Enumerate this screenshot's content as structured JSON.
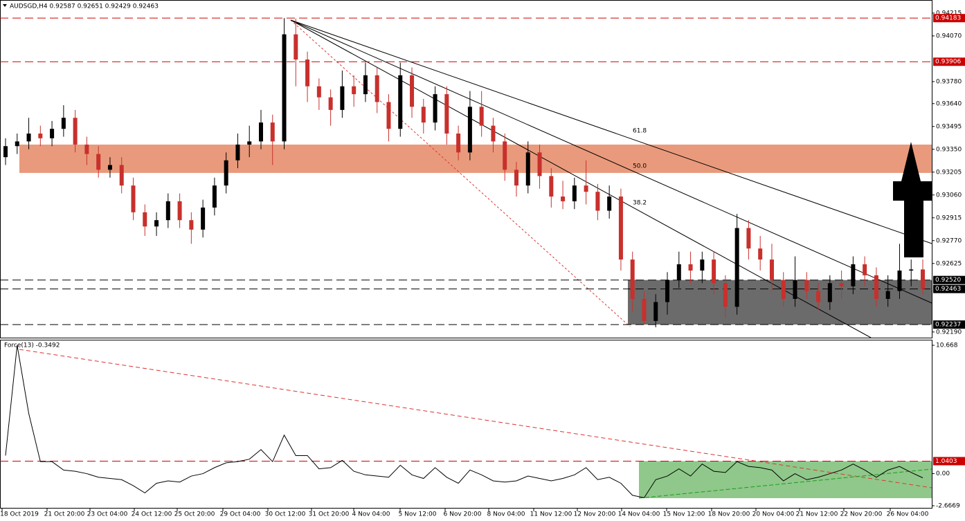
{
  "chart_data": {
    "type": "candlestick",
    "header": "AUDSGD,H4  0.92587 0.92651 0.92429 0.92463",
    "ylim": [
      0.92154,
      0.94298
    ],
    "yticks": [
      {
        "value": 0.94215,
        "label": "0.94215"
      },
      {
        "value": 0.9407,
        "label": "0.94070"
      },
      {
        "value": 0.9378,
        "label": "0.93780"
      },
      {
        "value": 0.9364,
        "label": "0.93640"
      },
      {
        "value": 0.93495,
        "label": "0.93495"
      },
      {
        "value": 0.9335,
        "label": "0.93350"
      },
      {
        "value": 0.93205,
        "label": "0.93205"
      },
      {
        "value": 0.9306,
        "label": "0.93060"
      },
      {
        "value": 0.92915,
        "label": "0.92915"
      },
      {
        "value": 0.9277,
        "label": "0.92770"
      },
      {
        "value": 0.92625,
        "label": "0.92625"
      },
      {
        "value": 0.9219,
        "label": "0.92190"
      }
    ],
    "x_labels": [
      "18 Oct 2019",
      "21 Oct 20:00",
      "23 Oct 04:00",
      "24 Oct 12:00",
      "25 Oct 20:00",
      "29 Oct 04:00",
      "30 Oct 12:00",
      "31 Oct 20:00",
      "4 Nov 04:00",
      "5 Nov 12:00",
      "6 Nov 20:00",
      "8 Nov 04:00",
      "11 Nov 12:00",
      "12 Nov 20:00",
      "14 Nov 04:00",
      "15 Nov 12:00",
      "18 Nov 20:00",
      "20 Nov 04:00",
      "21 Nov 12:00",
      "22 Nov 20:00",
      "26 Nov 04:00"
    ],
    "levels": [
      {
        "value": 0.94183,
        "label": "0.94183",
        "color": "#cc0000"
      },
      {
        "value": 0.93906,
        "label": "0.93906",
        "color": "#cc0000"
      },
      {
        "value": 0.9252,
        "label": "0.92520",
        "color": "#000000"
      },
      {
        "value": 0.92463,
        "label": "0.92463",
        "color": "#000000"
      },
      {
        "value": 0.92237,
        "label": "0.92237",
        "color": "#000000"
      }
    ],
    "resistance_zone": [
      0.932,
      0.9338
    ],
    "support_zone": [
      0.92237,
      0.9252
    ],
    "fib_labels": [
      "61.8",
      "50.0",
      "38.2"
    ],
    "up_color": "#000000",
    "down_color": "#c8302c",
    "ohlc": [
      [
        0.933,
        0.9342,
        0.9325,
        0.9337
      ],
      [
        0.9337,
        0.9345,
        0.9332,
        0.934
      ],
      [
        0.934,
        0.9355,
        0.9335,
        0.9345
      ],
      [
        0.9345,
        0.935,
        0.9337,
        0.9342
      ],
      [
        0.9342,
        0.9353,
        0.9337,
        0.9348
      ],
      [
        0.9348,
        0.9363,
        0.9343,
        0.9355
      ],
      [
        0.9355,
        0.936,
        0.9333,
        0.9338
      ],
      [
        0.9338,
        0.9343,
        0.9325,
        0.9332
      ],
      [
        0.9332,
        0.9337,
        0.9317,
        0.9322
      ],
      [
        0.9322,
        0.933,
        0.9317,
        0.9325
      ],
      [
        0.9325,
        0.933,
        0.9307,
        0.9312
      ],
      [
        0.9312,
        0.9317,
        0.929,
        0.9295
      ],
      [
        0.9295,
        0.93,
        0.928,
        0.9286
      ],
      [
        0.9286,
        0.9295,
        0.928,
        0.929
      ],
      [
        0.929,
        0.9307,
        0.9285,
        0.9302
      ],
      [
        0.9302,
        0.9307,
        0.9285,
        0.929
      ],
      [
        0.929,
        0.9295,
        0.9275,
        0.9284
      ],
      [
        0.9284,
        0.9303,
        0.9279,
        0.9298
      ],
      [
        0.9298,
        0.9317,
        0.9293,
        0.9312
      ],
      [
        0.9312,
        0.9333,
        0.9307,
        0.9328
      ],
      [
        0.9328,
        0.9345,
        0.9323,
        0.9338
      ],
      [
        0.9338,
        0.935,
        0.933,
        0.934
      ],
      [
        0.934,
        0.936,
        0.9335,
        0.9352
      ],
      [
        0.9352,
        0.9357,
        0.9325,
        0.934
      ],
      [
        0.934,
        0.94183,
        0.9335,
        0.9408
      ],
      [
        0.9408,
        0.9418,
        0.9375,
        0.9392
      ],
      [
        0.9392,
        0.9397,
        0.9365,
        0.9375
      ],
      [
        0.9375,
        0.938,
        0.936,
        0.9368
      ],
      [
        0.9368,
        0.9373,
        0.935,
        0.936
      ],
      [
        0.936,
        0.9385,
        0.9355,
        0.9375
      ],
      [
        0.9375,
        0.9382,
        0.9362,
        0.937
      ],
      [
        0.937,
        0.939,
        0.9365,
        0.9382
      ],
      [
        0.9382,
        0.9387,
        0.9358,
        0.9365
      ],
      [
        0.9365,
        0.937,
        0.934,
        0.9348
      ],
      [
        0.9348,
        0.939,
        0.9343,
        0.9382
      ],
      [
        0.9382,
        0.9387,
        0.9355,
        0.9362
      ],
      [
        0.9362,
        0.9367,
        0.9345,
        0.9352
      ],
      [
        0.9352,
        0.9375,
        0.9347,
        0.937
      ],
      [
        0.937,
        0.9375,
        0.9338,
        0.9345
      ],
      [
        0.9345,
        0.935,
        0.9328,
        0.9333
      ],
      [
        0.9333,
        0.9372,
        0.9328,
        0.9362
      ],
      [
        0.9362,
        0.9372,
        0.9343,
        0.935
      ],
      [
        0.935,
        0.9355,
        0.9333,
        0.934
      ],
      [
        0.934,
        0.9345,
        0.9315,
        0.9322
      ],
      [
        0.9322,
        0.9327,
        0.9305,
        0.9312
      ],
      [
        0.9312,
        0.934,
        0.9307,
        0.9333
      ],
      [
        0.9333,
        0.9338,
        0.931,
        0.9318
      ],
      [
        0.9318,
        0.9323,
        0.9298,
        0.9305
      ],
      [
        0.9305,
        0.9315,
        0.9297,
        0.9302
      ],
      [
        0.9302,
        0.9317,
        0.9297,
        0.9312
      ],
      [
        0.9312,
        0.9328,
        0.93,
        0.9308
      ],
      [
        0.9308,
        0.9313,
        0.929,
        0.9296
      ],
      [
        0.9296,
        0.9312,
        0.9291,
        0.9305
      ],
      [
        0.9305,
        0.931,
        0.9258,
        0.9265
      ],
      [
        0.9265,
        0.927,
        0.9232,
        0.924
      ],
      [
        0.924,
        0.9245,
        0.92237,
        0.9226
      ],
      [
        0.9226,
        0.9243,
        0.9222,
        0.9238
      ],
      [
        0.9238,
        0.9257,
        0.923,
        0.9252
      ],
      [
        0.9252,
        0.927,
        0.9247,
        0.9262
      ],
      [
        0.9262,
        0.927,
        0.925,
        0.9258
      ],
      [
        0.9258,
        0.927,
        0.925,
        0.9265
      ],
      [
        0.9265,
        0.927,
        0.9243,
        0.925
      ],
      [
        0.925,
        0.9255,
        0.9228,
        0.9235
      ],
      [
        0.9235,
        0.9294,
        0.923,
        0.9285
      ],
      [
        0.9285,
        0.929,
        0.9265,
        0.9272
      ],
      [
        0.9272,
        0.928,
        0.9258,
        0.9265
      ],
      [
        0.9265,
        0.9275,
        0.9245,
        0.9252
      ],
      [
        0.9252,
        0.9257,
        0.9235,
        0.924
      ],
      [
        0.924,
        0.9267,
        0.9235,
        0.9252
      ],
      [
        0.9252,
        0.9257,
        0.924,
        0.9245
      ],
      [
        0.9245,
        0.925,
        0.9233,
        0.9238
      ],
      [
        0.9238,
        0.9255,
        0.9233,
        0.925
      ],
      [
        0.925,
        0.9258,
        0.924,
        0.9248
      ],
      [
        0.9248,
        0.9267,
        0.9243,
        0.9262
      ],
      [
        0.9262,
        0.9267,
        0.9248,
        0.9255
      ],
      [
        0.9255,
        0.926,
        0.9235,
        0.924
      ],
      [
        0.924,
        0.9255,
        0.9235,
        0.9245
      ],
      [
        0.9245,
        0.9275,
        0.924,
        0.9258
      ],
      [
        0.9258,
        0.9265,
        0.9248,
        0.92587
      ],
      [
        0.92587,
        0.92651,
        0.92429,
        0.92463
      ]
    ],
    "force": {
      "label": "Force(13) -0.3492",
      "color": "#000000",
      "ylim": [
        -2.9,
        11.13
      ],
      "yticks": [
        {
          "value": 10.668,
          "label": "10.668"
        },
        {
          "value": 0,
          "label": "0.00"
        },
        {
          "value": -2.6669,
          "label": "-2.6669"
        }
      ],
      "level": {
        "value": 1.0403,
        "label": "1.0403",
        "color": "#cc0000"
      },
      "values": [
        1.5,
        10.668,
        5.0,
        1.0,
        1.0,
        0.3,
        0.2,
        0.0,
        -0.3,
        -0.4,
        -0.5,
        -1.0,
        -1.6,
        -0.8,
        -0.6,
        -0.7,
        -0.2,
        0.0,
        0.5,
        0.9,
        1.0,
        1.2,
        2.0,
        1.0,
        3.2,
        1.5,
        1.5,
        0.4,
        0.5,
        1.1,
        0.2,
        -0.1,
        -0.2,
        -0.3,
        0.7,
        -0.1,
        -0.4,
        0.5,
        -0.3,
        -0.8,
        0.3,
        -0.1,
        -0.6,
        -0.7,
        -0.6,
        -0.2,
        -0.4,
        -0.6,
        -0.4,
        -0.1,
        0.5,
        -0.5,
        -0.3,
        -0.8,
        -1.8,
        -2.0,
        -0.5,
        -0.2,
        0.4,
        -0.2,
        0.8,
        0.2,
        0.1,
        1.0,
        0.6,
        0.5,
        0.3,
        -0.6,
        0.0,
        -0.5,
        -0.3,
        0.0,
        0.3,
        0.8,
        0.3,
        -0.3,
        0.3,
        0.6,
        0.1,
        -0.3492
      ]
    }
  }
}
